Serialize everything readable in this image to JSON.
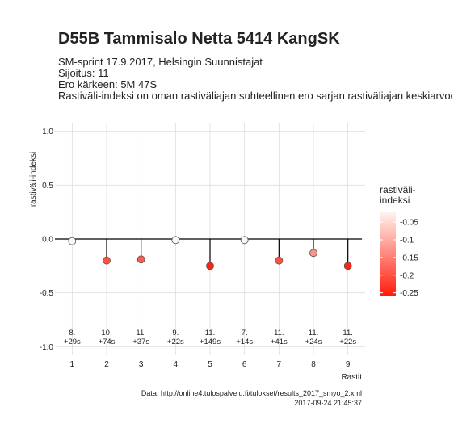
{
  "chart_data": {
    "type": "lollipop",
    "title": "D55B Tammisalo Netta 5414 KangSK",
    "subtitle": [
      "SM-sprint 17.9.2017, Helsingin Suunnistajat",
      "Sijoitus: 11",
      "Ero kärkeen: 5M 47S",
      "Rastiväli-indeksi on oman rastiväliajan suhteellinen ero sarjan rastiväliajan keskiarvoon"
    ],
    "x_label": "Rastit",
    "y_label": "rastiväli-indeksi",
    "x": [
      1,
      2,
      3,
      4,
      5,
      6,
      7,
      8,
      9
    ],
    "values": [
      -0.02,
      -0.2,
      -0.19,
      -0.01,
      -0.25,
      -0.01,
      -0.2,
      -0.13,
      -0.25
    ],
    "point_labels": [
      [
        "8.",
        "+29s"
      ],
      [
        "10.",
        "+74s"
      ],
      [
        "11.",
        "+37s"
      ],
      [
        "9.",
        "+22s"
      ],
      [
        "11.",
        "+149s"
      ],
      [
        "7.",
        "+14s"
      ],
      [
        "11.",
        "+41s"
      ],
      [
        "11.",
        "+24s"
      ],
      [
        "11.",
        "+22s"
      ]
    ],
    "xlim": [
      0.5,
      9.5
    ],
    "xticks": [
      1,
      2,
      3,
      4,
      5,
      6,
      7,
      8,
      9
    ],
    "ylim": [
      -1.08,
      1.08
    ],
    "yticks": [
      {
        "value": -1,
        "label": "-1.0"
      },
      {
        "value": -0.5,
        "label": "-0.5"
      },
      {
        "value": 0,
        "label": "0.0"
      },
      {
        "value": 0.5,
        "label": "0.5"
      },
      {
        "value": 1,
        "label": "1.0"
      }
    ],
    "grid": true,
    "legend_title": [
      "rastiväli-",
      "indeksi"
    ],
    "color_lim": [
      -0.26,
      -0.02
    ],
    "color_low": "#ff1a0a",
    "color_high": "#fff5f0",
    "color_ticks": [
      -0.05,
      -0.1,
      -0.15,
      -0.2,
      -0.25
    ],
    "caption": [
      "Data: http://online4.tulospalvelu.fi/tulokset/results_2017_smyo_2.xml",
      "2017-09-24 21:45:37"
    ]
  }
}
